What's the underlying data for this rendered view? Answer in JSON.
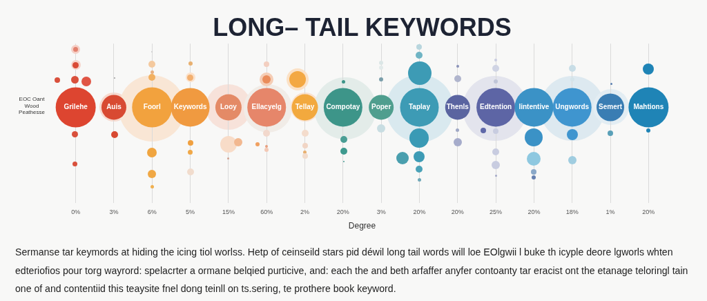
{
  "chart_data": {
    "type": "other",
    "title": "LONG– TAIL KEYWORDS",
    "xlabel": "Degree",
    "ylabel": "EOC Oant Wood Peathesse",
    "categories": [
      "Grilehe",
      "Auis",
      "Foorl",
      "Keywords",
      "Looy",
      "Ellacyelg",
      "Tellay",
      "Compotay",
      "Poper",
      "Taplay",
      "Thenls",
      "Edtention",
      "lintentive",
      "Ungwords",
      "Semert",
      "Mahtions"
    ],
    "values": [
      0,
      3,
      6,
      5,
      15,
      60,
      2,
      20,
      3,
      20,
      20,
      25,
      20,
      18,
      1,
      20
    ],
    "value_labels": [
      "0%",
      "3%",
      "6%",
      "5%",
      "15%",
      "60%",
      "2%",
      "20%",
      "3%",
      "20%",
      "20%",
      "25%",
      "20%",
      "18%",
      "1%",
      "20%"
    ],
    "colors": [
      "#dd4530",
      "#d84a32",
      "#f2a23e",
      "#f09a40",
      "#e48a66",
      "#e6866a",
      "#f2a93e",
      "#3d9589",
      "#4f9e8e",
      "#3d9bb5",
      "#5a64a0",
      "#5d65a5",
      "#3b92c6",
      "#3f95cf",
      "#3a7db3",
      "#1f84b6"
    ],
    "annotations": [
      "Sermanse tar keymords at hiding the icing tiol worlss. Hetp of ceinseild stars pid déwil long tail words will loe EOlgwii l buke th icyple deore lgworls whten\nedteriofios pour torg wayrord: spelacrter a ormane belqied purticive, and: each the and beth arfaffer anyfer contoanty tar eracist ont the etanage teloringl tain\none of and contentiid this teaysite fnel dong teinll on ts.sering, te prothere book keyword."
    ]
  }
}
